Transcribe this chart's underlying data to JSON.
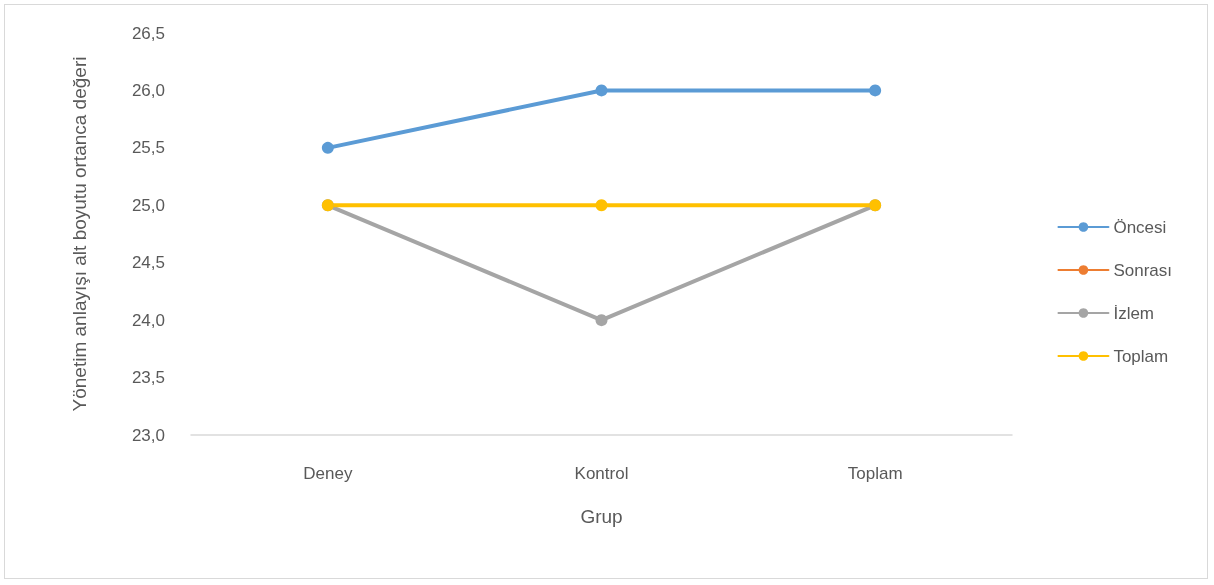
{
  "chart_data": {
    "type": "line",
    "xlabel": "Grup",
    "ylabel": "Yönetim anlayışı alt boyutu ortanca değeri",
    "categories": [
      "Deney",
      "Kontrol",
      "Toplam"
    ],
    "series": [
      {
        "name": "Öncesi",
        "color": "#5b9bd5",
        "values": [
          25.5,
          26.0,
          26.0
        ]
      },
      {
        "name": "Sonrası",
        "color": "#ed7d31",
        "values": [
          null,
          null,
          null
        ]
      },
      {
        "name": "İzlem",
        "color": "#a5a5a5",
        "values": [
          25.0,
          24.0,
          25.0
        ]
      },
      {
        "name": "Toplam",
        "color": "#ffc000",
        "values": [
          25.0,
          25.0,
          25.0
        ]
      }
    ],
    "ylim": [
      23.0,
      26.5
    ],
    "yticks": [
      {
        "value": 23.0,
        "label": "23,0"
      },
      {
        "value": 23.5,
        "label": "23,5"
      },
      {
        "value": 24.0,
        "label": "24,0"
      },
      {
        "value": 24.5,
        "label": "24,5"
      },
      {
        "value": 25.0,
        "label": "25,0"
      },
      {
        "value": 25.5,
        "label": "25,5"
      },
      {
        "value": 26.0,
        "label": "26,0"
      },
      {
        "value": 26.5,
        "label": "26,5"
      }
    ],
    "grid": false,
    "legend": "right",
    "marker": "circle",
    "line_style": "solid"
  }
}
